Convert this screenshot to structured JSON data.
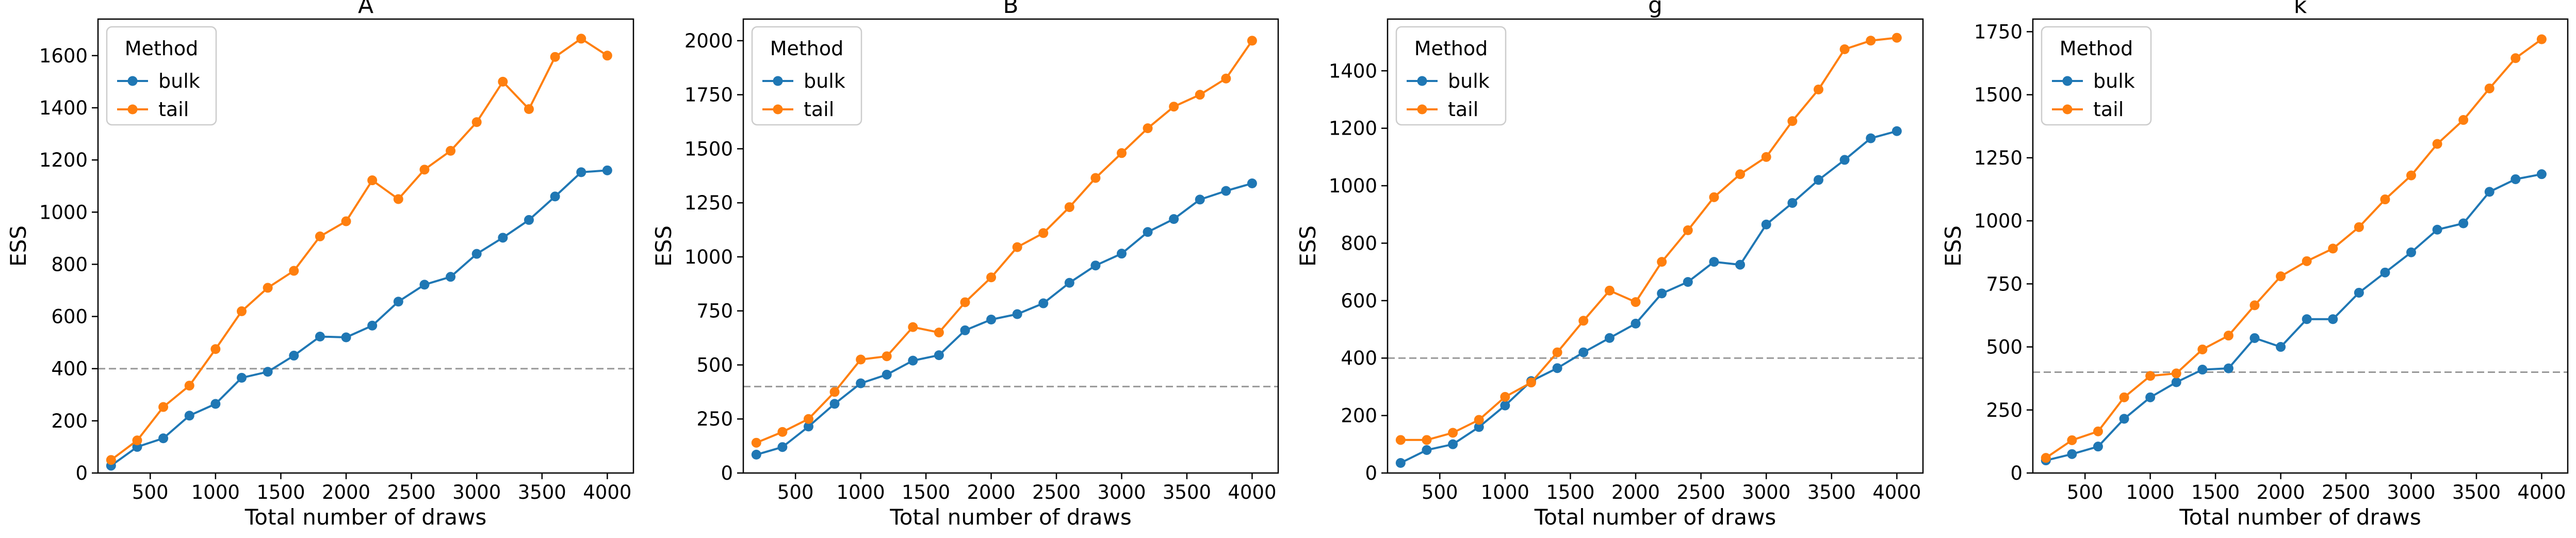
{
  "figure": {
    "ylabel": "ESS",
    "xlabel": "Total number of draws"
  },
  "legend": {
    "title": "Method"
  },
  "colors": {
    "bulk": "#1f77b4",
    "tail": "#ff7f0e",
    "reference": "#999999"
  },
  "chart_data": [
    {
      "type": "line",
      "title": "A",
      "xlabel": "Total number of draws",
      "ylabel": "ESS",
      "x": [
        200,
        400,
        600,
        800,
        1000,
        1200,
        1400,
        1600,
        1800,
        2000,
        2200,
        2400,
        2600,
        2800,
        3000,
        3200,
        3400,
        3600,
        3800,
        4000
      ],
      "xlim": [
        100,
        4200
      ],
      "ylim": [
        0,
        1740
      ],
      "xticks": [
        500,
        1000,
        1500,
        2000,
        2500,
        3000,
        3500,
        4000
      ],
      "yticks": [
        0,
        200,
        400,
        600,
        800,
        1000,
        1200,
        1400,
        1600
      ],
      "reference_line": 400,
      "legend_position": "upper-left",
      "grid": false,
      "series": [
        {
          "name": "bulk",
          "values": [
            28,
            100,
            133,
            220,
            265,
            365,
            388,
            450,
            523,
            520,
            565,
            657,
            722,
            752,
            840,
            902,
            970,
            1060,
            1153,
            1160
          ]
        },
        {
          "name": "tail",
          "values": [
            50,
            125,
            253,
            335,
            475,
            620,
            710,
            775,
            907,
            965,
            1122,
            1050,
            1163,
            1235,
            1345,
            1500,
            1395,
            1595,
            1665,
            1600
          ]
        }
      ]
    },
    {
      "type": "line",
      "title": "B",
      "xlabel": "Total number of draws",
      "ylabel": "ESS",
      "x": [
        200,
        400,
        600,
        800,
        1000,
        1200,
        1400,
        1600,
        1800,
        2000,
        2200,
        2400,
        2600,
        2800,
        3000,
        3200,
        3400,
        3600,
        3800,
        4000
      ],
      "xlim": [
        100,
        4200
      ],
      "ylim": [
        0,
        2100
      ],
      "xticks": [
        500,
        1000,
        1500,
        2000,
        2500,
        3000,
        3500,
        4000
      ],
      "yticks": [
        0,
        250,
        500,
        750,
        1000,
        1250,
        1500,
        1750,
        2000
      ],
      "reference_line": 400,
      "legend_position": "upper-left",
      "grid": false,
      "series": [
        {
          "name": "bulk",
          "values": [
            85,
            120,
            215,
            320,
            415,
            455,
            520,
            545,
            660,
            710,
            735,
            785,
            880,
            960,
            1015,
            1115,
            1175,
            1265,
            1305,
            1340
          ]
        },
        {
          "name": "tail",
          "values": [
            140,
            190,
            250,
            375,
            525,
            540,
            675,
            650,
            790,
            905,
            1045,
            1110,
            1230,
            1365,
            1480,
            1595,
            1695,
            1750,
            1825,
            2000
          ]
        }
      ]
    },
    {
      "type": "line",
      "title": "g",
      "xlabel": "Total number of draws",
      "ylabel": "ESS",
      "x": [
        200,
        400,
        600,
        800,
        1000,
        1200,
        1400,
        1600,
        1800,
        2000,
        2200,
        2400,
        2600,
        2800,
        3000,
        3200,
        3400,
        3600,
        3800,
        4000
      ],
      "xlim": [
        100,
        4200
      ],
      "ylim": [
        0,
        1580
      ],
      "xticks": [
        500,
        1000,
        1500,
        2000,
        2500,
        3000,
        3500,
        4000
      ],
      "yticks": [
        0,
        200,
        400,
        600,
        800,
        1000,
        1200,
        1400
      ],
      "reference_line": 400,
      "legend_position": "upper-left",
      "grid": false,
      "series": [
        {
          "name": "bulk",
          "values": [
            35,
            80,
            100,
            160,
            235,
            320,
            365,
            420,
            470,
            520,
            625,
            665,
            735,
            725,
            865,
            940,
            1020,
            1090,
            1165,
            1190
          ]
        },
        {
          "name": "tail",
          "values": [
            115,
            115,
            140,
            185,
            265,
            315,
            420,
            530,
            635,
            595,
            735,
            845,
            960,
            1040,
            1100,
            1225,
            1335,
            1475,
            1505,
            1515
          ]
        }
      ]
    },
    {
      "type": "line",
      "title": "k",
      "xlabel": "Total number of draws",
      "ylabel": "ESS",
      "x": [
        200,
        400,
        600,
        800,
        1000,
        1200,
        1400,
        1600,
        1800,
        2000,
        2200,
        2400,
        2600,
        2800,
        3000,
        3200,
        3400,
        3600,
        3800,
        4000
      ],
      "xlim": [
        100,
        4200
      ],
      "ylim": [
        0,
        1800
      ],
      "xticks": [
        500,
        1000,
        1500,
        2000,
        2500,
        3000,
        3500,
        4000
      ],
      "yticks": [
        0,
        250,
        500,
        750,
        1000,
        1250,
        1500,
        1750
      ],
      "reference_line": 400,
      "legend_position": "upper-left",
      "grid": false,
      "series": [
        {
          "name": "bulk",
          "values": [
            50,
            75,
            105,
            215,
            300,
            360,
            410,
            415,
            535,
            500,
            610,
            610,
            715,
            795,
            875,
            965,
            990,
            1115,
            1165,
            1185
          ]
        },
        {
          "name": "tail",
          "values": [
            60,
            130,
            165,
            300,
            385,
            395,
            490,
            545,
            665,
            780,
            840,
            890,
            975,
            1085,
            1180,
            1305,
            1400,
            1525,
            1645,
            1720
          ]
        }
      ]
    }
  ]
}
